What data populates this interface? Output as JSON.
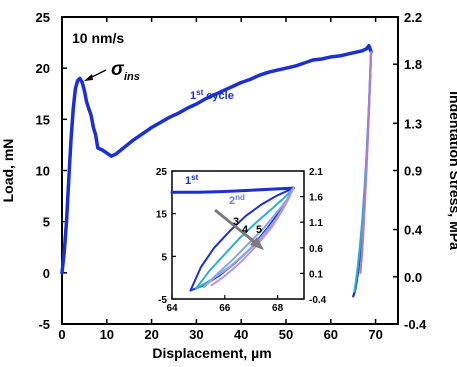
{
  "chart_data": [
    {
      "type": "line",
      "xlabel": "Displacement, µm",
      "ylabel": "Load, mN",
      "y2label": "Indentation Stress, MPa",
      "xlim": [
        0,
        75
      ],
      "ylim": [
        -5,
        25
      ],
      "y2lim": [
        -0.4,
        2.2
      ],
      "xticks": [
        "0",
        "10",
        "20",
        "30",
        "40",
        "50",
        "60",
        "70"
      ],
      "yticks": [
        "-5",
        "0",
        "5",
        "10",
        "15",
        "20",
        "25"
      ],
      "y2ticks": [
        "-0.4",
        "0.0",
        "0.4",
        "0.9",
        "1.3",
        "1.8",
        "2.2"
      ],
      "y2tick_values": [
        -0.4,
        0.0,
        0.4,
        0.9,
        1.3,
        1.8,
        2.2
      ],
      "grid": false,
      "annotations": {
        "rate": "10 nm/s",
        "peak_symbol": "σ",
        "peak_subscript": "ins",
        "cycle_label_base": "1",
        "cycle_label_sup": "st",
        "cycle_label_rest": " cycle"
      },
      "series": [
        {
          "color": "#1a2fd6",
          "x": [
            0,
            0.5,
            1,
            1.5,
            2,
            2.5,
            3,
            3.5,
            4,
            4.5,
            5,
            5.5,
            6,
            6.5,
            7,
            7.5,
            8,
            9,
            10,
            11,
            12,
            14,
            16,
            18,
            20,
            22,
            24,
            26,
            28,
            30,
            32,
            34,
            36,
            38,
            40,
            42,
            44,
            46,
            48,
            50,
            52,
            54,
            56,
            58,
            60,
            62,
            63,
            64,
            65,
            66,
            67,
            68,
            68.5,
            69
          ],
          "y": [
            0,
            2,
            5,
            9,
            13,
            16,
            18,
            18.8,
            19,
            18.6,
            17.8,
            16.7,
            16,
            15.4,
            14.2,
            13.5,
            12.2,
            12,
            11.7,
            11.4,
            11.6,
            12.3,
            13.0,
            13.6,
            14.2,
            14.7,
            15.2,
            15.6,
            16.1,
            16.5,
            17.0,
            17.4,
            17.8,
            18.2,
            18.6,
            18.9,
            19.3,
            19.6,
            19.8,
            20.0,
            20.2,
            20.5,
            20.8,
            20.9,
            21.1,
            21.2,
            21.3,
            21.4,
            21.5,
            21.6,
            21.7,
            21.9,
            22.2,
            21.6
          ]
        },
        {
          "color": "#1a2fd6",
          "x": [
            69,
            68.6,
            68.2,
            67.8,
            67.4,
            67,
            66.6,
            66.2,
            65.8,
            65.4,
            65
          ],
          "y": [
            21.6,
            17,
            13,
            9.5,
            6.5,
            4,
            2,
            0.5,
            -0.8,
            -1.8,
            -2.3
          ]
        },
        {
          "color": "#2bb0c8",
          "x": [
            69,
            68.5,
            68,
            67.5,
            67,
            66.5,
            66,
            65.6,
            65.3
          ],
          "y": [
            21.6,
            16,
            11.5,
            8,
            5,
            2.5,
            0.5,
            -0.9,
            -1.8
          ]
        },
        {
          "color": "#b07ad0",
          "x": [
            69,
            68.7,
            68.4,
            68.1,
            67.8,
            67.5,
            67.2,
            66.9,
            66.6
          ],
          "y": [
            21.6,
            18,
            14.5,
            11.5,
            8.5,
            6,
            3.5,
            1.5,
            0
          ]
        }
      ]
    },
    {
      "type": "line",
      "inset": true,
      "xlim": [
        64,
        69
      ],
      "ylim": [
        -5,
        25
      ],
      "y2lim": [
        -0.4,
        2.1
      ],
      "xticks": [
        "64",
        "66",
        "68"
      ],
      "yticks": [
        "-5",
        "5",
        "15",
        "25"
      ],
      "y2ticks": [
        "-0.4",
        "0.1",
        "0.6",
        "1.1",
        "1.6",
        "2.1"
      ],
      "y2tick_values": [
        -0.4,
        0.1,
        0.6,
        1.1,
        1.6,
        2.1
      ],
      "labels": {
        "first_base": "1",
        "first_sup": "st",
        "second_base": "2",
        "second_sup": "nd",
        "c3": "3",
        "c4": "4",
        "c5": "5"
      },
      "series": [
        {
          "color": "#1a2fd6",
          "x": [
            64,
            65,
            66,
            67,
            68,
            68.6
          ],
          "y": [
            20,
            20,
            20.2,
            20.5,
            20.8,
            21
          ]
        },
        {
          "color": "#1a2fd6",
          "x": [
            64.7,
            65.1,
            65.6,
            66.2,
            66.8,
            67.4,
            68,
            68.6
          ],
          "y": [
            -3,
            2.5,
            7,
            11,
            14.5,
            17.2,
            19.3,
            21
          ]
        },
        {
          "color": "#1a2fd6",
          "x": [
            68.6,
            68.2,
            67.6,
            67,
            66.4,
            65.8,
            65.2,
            64.7
          ],
          "y": [
            21,
            16.5,
            11.5,
            7,
            3.5,
            0.5,
            -1.8,
            -3
          ]
        },
        {
          "color": "#2bb0c8",
          "x": [
            64.9,
            65.4,
            66,
            66.6,
            67.2,
            67.8,
            68.3,
            68.6
          ],
          "y": [
            -2.6,
            1.5,
            5.5,
            9.5,
            13,
            16.2,
            19,
            21
          ]
        },
        {
          "color": "#2bb0c8",
          "x": [
            68.6,
            68.3,
            67.8,
            67.2,
            66.6,
            66,
            65.4,
            64.9
          ],
          "y": [
            21,
            17.2,
            12.5,
            8.2,
            4.6,
            1.6,
            -0.8,
            -2.6
          ]
        },
        {
          "color": "#8ea4e8",
          "x": [
            65.2,
            65.7,
            66.3,
            66.9,
            67.5,
            68,
            68.4,
            68.6
          ],
          "y": [
            -2.2,
            0.8,
            4.2,
            8,
            11.8,
            15.5,
            18.6,
            21
          ]
        },
        {
          "color": "#8ea4e8",
          "x": [
            68.6,
            68.4,
            68,
            67.4,
            66.8,
            66.2,
            65.6,
            65.2
          ],
          "y": [
            21,
            18.3,
            14.2,
            9.6,
            5.8,
            2.6,
            0,
            -2.2
          ]
        },
        {
          "color": "#c890d8",
          "x": [
            65.5,
            66,
            66.6,
            67.2,
            67.8,
            68.2,
            68.6
          ],
          "y": [
            -1.8,
            0.4,
            3.6,
            7.5,
            12,
            16,
            21
          ]
        }
      ]
    }
  ]
}
